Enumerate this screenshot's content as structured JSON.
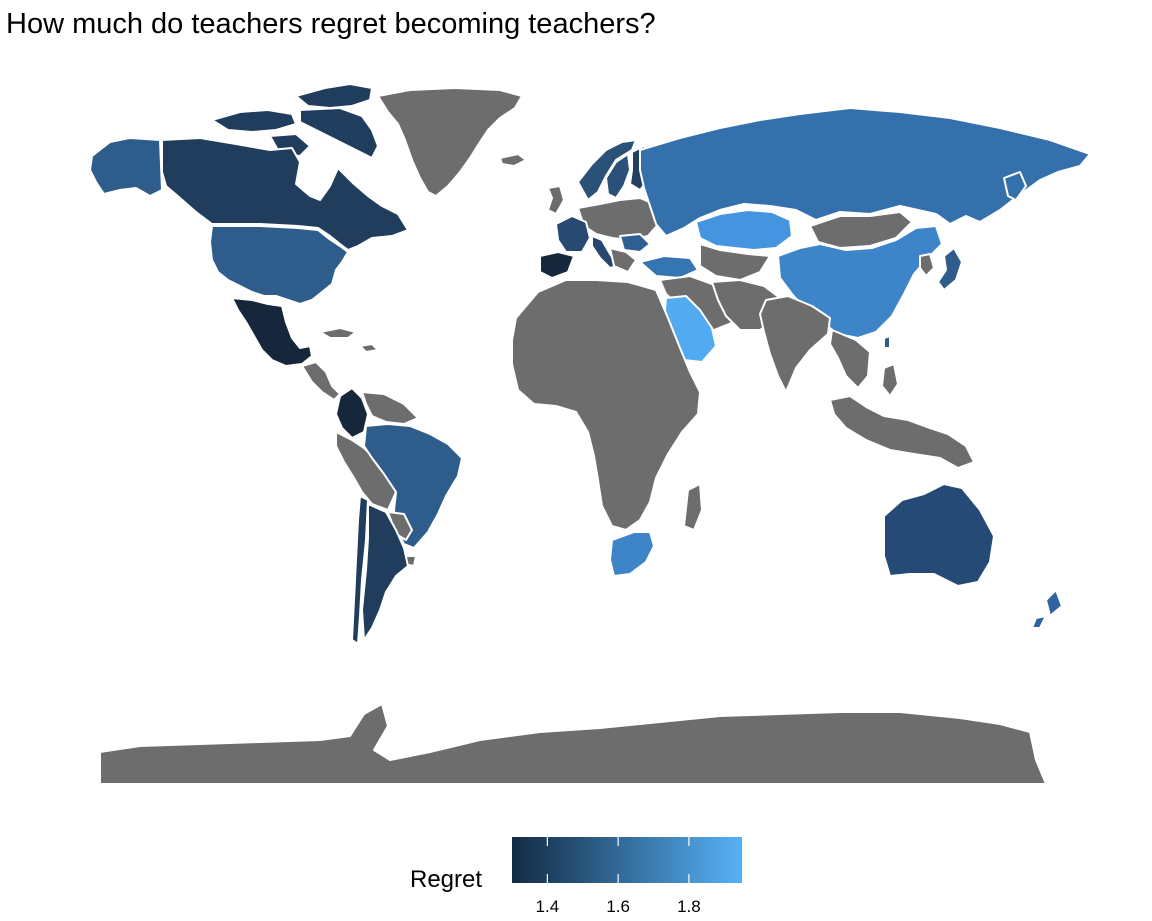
{
  "title": "How much do teachers regret becoming teachers?",
  "legend": {
    "title": "Regret",
    "ticks": [
      "1.4",
      "1.6",
      "1.8"
    ],
    "tick_values": [
      1.4,
      1.6,
      1.8
    ],
    "min": 1.3,
    "max": 1.95,
    "color_low": "#132B43",
    "color_high": "#56B1F7"
  },
  "colors": {
    "no_data": "#6d6d6d",
    "border": "#ffffff",
    "background": "#ffffff"
  },
  "chart_data": {
    "type": "choropleth",
    "title": "How much do teachers regret becoming teachers?",
    "fill_variable": "Regret",
    "value_range": [
      1.3,
      1.95
    ],
    "regions_shown_with_estimated_regret": [
      {
        "region": "Canada",
        "regret": 1.42
      },
      {
        "region": "United States",
        "regret": 1.58
      },
      {
        "region": "Alaska (United States)",
        "regret": 1.58
      },
      {
        "region": "Mexico",
        "regret": 1.34
      },
      {
        "region": "Colombia",
        "regret": 1.33
      },
      {
        "region": "Brazil",
        "regret": 1.63
      },
      {
        "region": "Chile",
        "regret": 1.38
      },
      {
        "region": "Argentina",
        "regret": 1.38
      },
      {
        "region": "Spain",
        "regret": 1.33
      },
      {
        "region": "France",
        "regret": 1.5
      },
      {
        "region": "Italy",
        "regret": 1.45
      },
      {
        "region": "Romania",
        "regret": 1.55
      },
      {
        "region": "Sweden",
        "regret": 1.5
      },
      {
        "region": "Finland",
        "regret": 1.48
      },
      {
        "region": "Norway",
        "regret": 1.5
      },
      {
        "region": "Russia",
        "regret": 1.7
      },
      {
        "region": "Turkey",
        "regret": 1.72
      },
      {
        "region": "Georgia",
        "regret": 1.72
      },
      {
        "region": "Kazakhstan",
        "regret": 1.88
      },
      {
        "region": "China",
        "regret": 1.78
      },
      {
        "region": "Saudi Arabia",
        "regret": 1.93
      },
      {
        "region": "South Africa",
        "regret": 1.78
      },
      {
        "region": "Australia",
        "regret": 1.52
      },
      {
        "region": "New Zealand",
        "regret": 1.6
      }
    ],
    "grid": false,
    "legend_position": "bottom"
  }
}
